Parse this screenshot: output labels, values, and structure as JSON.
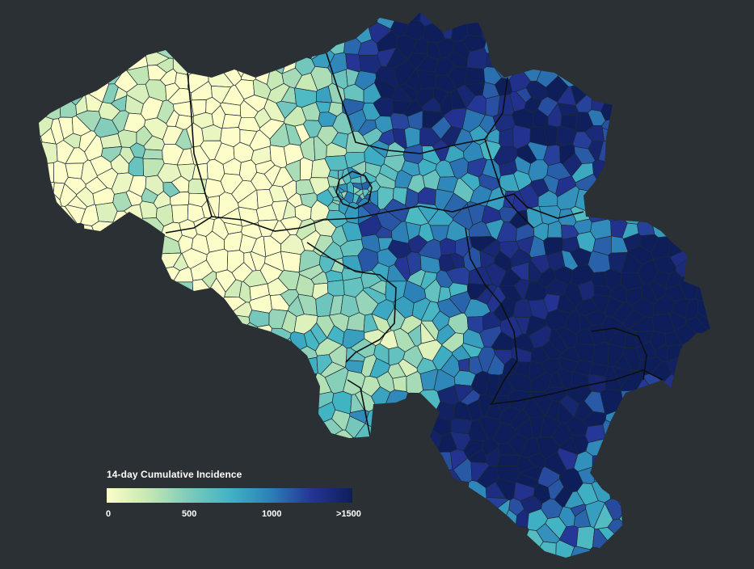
{
  "legend": {
    "title": "14-day Cumulative Incidence",
    "ticks": [
      "0",
      "500",
      "1000",
      ">1500"
    ],
    "range": [
      0,
      1500
    ],
    "colors": [
      "#fcfdc8",
      "#c6e8b4",
      "#7ecbbb",
      "#41b4c4",
      "#2c80b8",
      "#253495",
      "#0e1e5a"
    ]
  },
  "map": {
    "background": "#2a3033",
    "boundary_color": "#0b0f12",
    "region": "Belgium",
    "units": "municipalities"
  }
}
